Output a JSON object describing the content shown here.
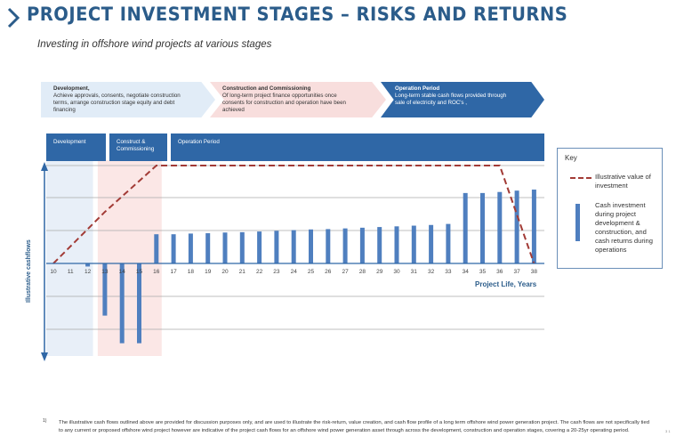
{
  "header": {
    "title": "PROJECT INVESTMENT STAGES – RISKS AND RETURNS",
    "subtitle": "Investing in offshore wind projects at various stages"
  },
  "stages": [
    {
      "heading": "Development,",
      "text": "Achieve approvals, consents, negotiate construction terms, arrange construction stage equity and debt financing"
    },
    {
      "heading": "Construction and Commissioning",
      "text": "Of long-term project finance opportunities once consents for construction and operation have been achieved"
    },
    {
      "heading": "Operation Period",
      "text": "Long-term stable cash flows provided through sale of electricity and ROC's ,"
    }
  ],
  "phases": [
    "Development",
    "Construct & Commissioning",
    "Operation Period"
  ],
  "key": {
    "title": "Key",
    "line_label": "Illustrative value of investment",
    "bar_label": "Cash investment during project development & construction, and cash returns during operations"
  },
  "footnote": {
    "marker": "1)",
    "text": "The illustrative cash flows outlined above are provided for discussion purposes only, and are used to illustrate the risk-return, value creation, and cash flow profile of a long term offshore wind power generation project. The cash flows are not specifically tied to any current or proposed offshore wind project however are indicative of the project cash flows for an offshore wind power generation asset through across the development, construction and operation stages, covering a 20-25yr operating period."
  },
  "page_number": "3 1",
  "chart_data": {
    "type": "bar",
    "xlabel": "Project Life, Years",
    "ylabel": "Illustrative cashflows",
    "categories": [
      "10",
      "11",
      "12",
      "13",
      "14",
      "15",
      "16",
      "17",
      "18",
      "19",
      "20",
      "21",
      "22",
      "23",
      "24",
      "25",
      "26",
      "27",
      "28",
      "29",
      "30",
      "31",
      "32",
      "33",
      "34",
      "35",
      "36",
      "37",
      "38"
    ],
    "series": [
      {
        "name": "Cash investment during project development & construction, and cash returns during operations",
        "values": [
          0,
          0,
          -0.1,
          -1.7,
          -2.6,
          -2.6,
          0.85,
          0.85,
          0.87,
          0.88,
          0.9,
          0.91,
          0.93,
          0.95,
          0.97,
          0.99,
          1.0,
          1.02,
          1.04,
          1.06,
          1.08,
          1.1,
          1.12,
          1.15,
          2.05,
          2.05,
          2.08,
          2.12,
          2.15
        ]
      }
    ],
    "line_series": {
      "name": "Illustrative value of investment",
      "x": [
        "10",
        "13",
        "16",
        "36",
        "38"
      ],
      "values": [
        0,
        1.5,
        2.85,
        2.85,
        0
      ]
    },
    "ylim": [
      -2.9,
      2.85
    ],
    "colors": {
      "bars": "#4f7fbf",
      "line": "#a23b36",
      "axis": "#2f67a6",
      "grid": "#aaaaaa"
    },
    "stage_shading": [
      {
        "from": "10",
        "to": "12",
        "color": "#e8eff8"
      },
      {
        "from": "13",
        "to": "16",
        "color": "#fbe7e6"
      }
    ],
    "grid": true,
    "legend_position": "right"
  }
}
